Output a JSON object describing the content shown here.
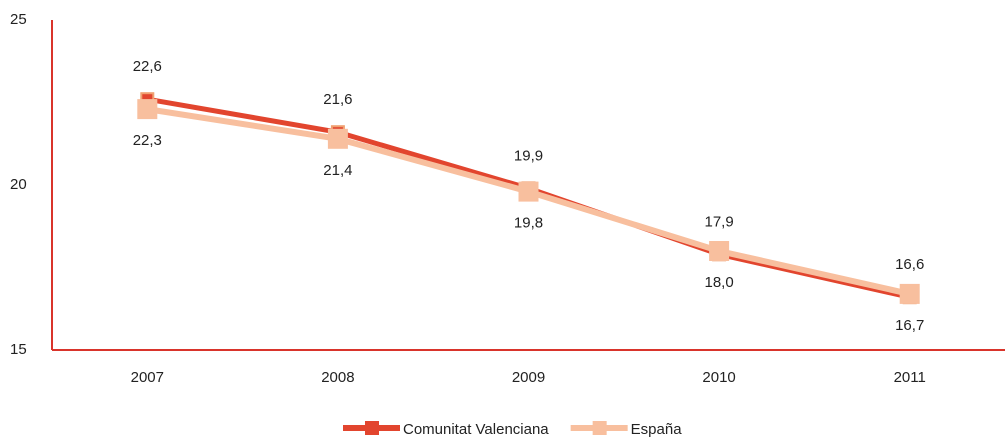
{
  "chart_data": {
    "type": "line",
    "categories": [
      "2007",
      "2008",
      "2009",
      "2010",
      "2011"
    ],
    "series": [
      {
        "name": "Comunitat Valenciana",
        "color": "#e2452e",
        "values": [
          22.6,
          21.6,
          19.9,
          17.9,
          16.6
        ],
        "value_labels": [
          "22,6",
          "21,6",
          "19,9",
          "17,9",
          "16,6"
        ]
      },
      {
        "name": "España",
        "color": "#f8bf9e",
        "values": [
          22.3,
          21.4,
          19.8,
          18.0,
          16.7
        ],
        "value_labels": [
          "22,3",
          "21,4",
          "19,8",
          "18,0",
          "16,7"
        ]
      }
    ],
    "ylim": [
      15,
      25
    ],
    "yticks": [
      15,
      20,
      25
    ],
    "grid": false,
    "legend": "bottom",
    "axis_color": "#d9342b"
  }
}
